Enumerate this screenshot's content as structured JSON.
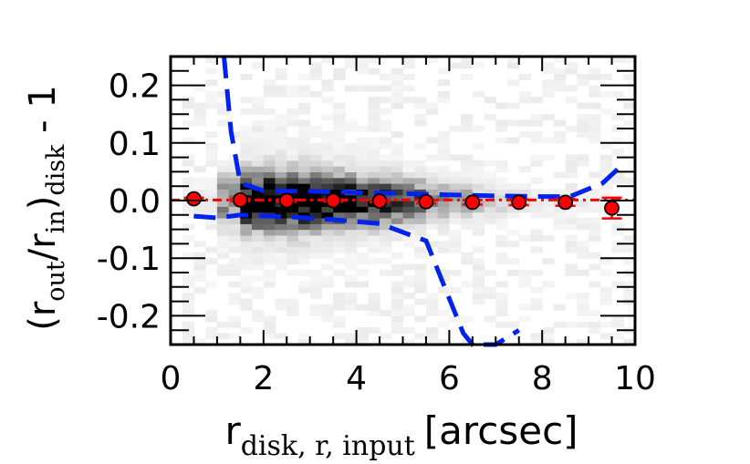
{
  "chart_data": {
    "type": "scatter",
    "title": "",
    "xlabel": {
      "main": "r",
      "sub": "disk, r, input",
      "unit": "[arcsec]"
    },
    "ylabel": {
      "open": "(r",
      "sub_out": "out",
      "slash": "/r",
      "sub_in": "in",
      "close": ")",
      "sub_disk": "disk",
      "tail": " - 1"
    },
    "xlim": [
      0,
      10
    ],
    "ylim": [
      -0.25,
      0.25
    ],
    "x_ticks": [
      0,
      2,
      4,
      6,
      8,
      10
    ],
    "x_tick_labels": [
      "0",
      "2",
      "4",
      "6",
      "8",
      "10"
    ],
    "y_ticks": [
      -0.2,
      -0.1,
      0.0,
      0.1,
      0.2
    ],
    "y_tick_labels": [
      "-0.2",
      "-0.1",
      "0.0",
      "0.1",
      "0.2"
    ],
    "grid": false,
    "colors": {
      "points": "#ff0000",
      "point_edge": "#000000",
      "error_bars": "#ff0000",
      "zero_line": "#ff0000",
      "envelope": "#0022ee",
      "density": "grayscale"
    },
    "series": [
      {
        "name": "",
        "x": [
          0.5,
          1.5,
          2.5,
          3.5,
          4.5,
          5.5,
          6.5,
          7.5,
          8.5,
          9.5
        ],
        "y": [
          0.003,
          0.001,
          0.0,
          0.0,
          -0.001,
          -0.002,
          -0.003,
          -0.003,
          -0.003,
          -0.013
        ],
        "yerr": [
          0.002,
          0.002,
          0.002,
          0.002,
          0.002,
          0.003,
          0.004,
          0.005,
          0.006,
          0.018
        ]
      }
    ],
    "envelope_upper": {
      "x": [
        1.15,
        1.3,
        1.5,
        2.0,
        3.0,
        4.0,
        5.0,
        6.0,
        7.0,
        8.0,
        8.6,
        9.3,
        9.7
      ],
      "y": [
        0.25,
        0.12,
        0.03,
        0.017,
        0.016,
        0.014,
        0.012,
        0.01,
        0.008,
        0.007,
        0.007,
        0.03,
        0.06
      ]
    },
    "envelope_lower": {
      "x": [
        0.5,
        1.0,
        1.5,
        2.5,
        3.5,
        4.5,
        5.5,
        5.9,
        6.3,
        6.5,
        7.0,
        7.5
      ],
      "y": [
        -0.027,
        -0.03,
        -0.025,
        -0.028,
        -0.033,
        -0.04,
        -0.07,
        -0.15,
        -0.23,
        -0.25,
        -0.25,
        -0.225
      ]
    },
    "density": {
      "x_bins": [
        0.5,
        1.0,
        1.5,
        2.0,
        2.5,
        3.0,
        3.5,
        4.0,
        4.5,
        5.0,
        5.5,
        6.0,
        6.5,
        7.0,
        7.5,
        8.0,
        8.5,
        9.0,
        9.5
      ],
      "weights": [
        0.05,
        0.35,
        0.95,
        1.0,
        1.0,
        0.95,
        0.9,
        0.8,
        0.7,
        0.55,
        0.4,
        0.28,
        0.2,
        0.14,
        0.1,
        0.08,
        0.06,
        0.05,
        0.03
      ],
      "y_sigma": [
        0.03,
        0.03,
        0.03,
        0.03,
        0.03,
        0.028,
        0.027,
        0.025,
        0.024,
        0.022,
        0.02,
        0.019,
        0.018,
        0.017,
        0.016,
        0.016,
        0.015,
        0.015,
        0.015
      ]
    }
  }
}
